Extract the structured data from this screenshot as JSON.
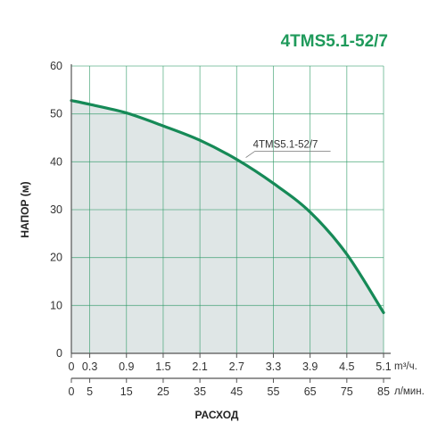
{
  "chart_data": {
    "type": "area",
    "title": "4TMS5.1-52/7",
    "ylabel": "НАПОР (м)",
    "xlabel": "РАСХОД",
    "ylim": [
      0,
      60
    ],
    "y_ticks": [
      "0",
      "10",
      "20",
      "30",
      "40",
      "50",
      "60"
    ],
    "x_axes": [
      {
        "unit": "m³/ч.",
        "ticks": [
          "0",
          "0.3",
          "0.9",
          "1.5",
          "2.1",
          "2.7",
          "3.3",
          "3.9",
          "4.5",
          "5.1"
        ]
      },
      {
        "unit": "л/мин.",
        "ticks": [
          "0",
          "5",
          "15",
          "25",
          "35",
          "45",
          "55",
          "65",
          "75",
          "85"
        ]
      }
    ],
    "grid": true,
    "series": [
      {
        "name": "4TMS5.1-52/7",
        "x": [
          0,
          5,
          15,
          25,
          35,
          45,
          55,
          65,
          75,
          85
        ],
        "values": [
          52.8,
          52.0,
          50.2,
          47.5,
          44.5,
          40.5,
          35.5,
          29.5,
          20.7,
          8.5
        ]
      }
    ],
    "colors": {
      "curve": "#168a57",
      "fill": "#dfe6e6",
      "grid": "#2e9a66",
      "axis": "#555555",
      "title": "#1f9a5b"
    }
  }
}
